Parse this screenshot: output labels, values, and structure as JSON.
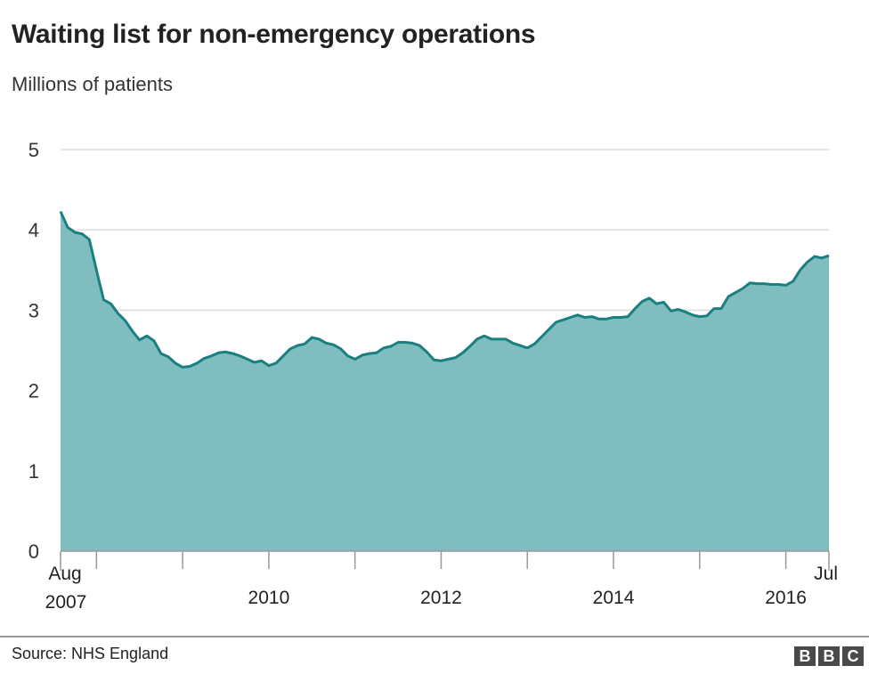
{
  "title": "Waiting list for non-emergency operations",
  "subtitle": "Millions of patients",
  "source": "Source: NHS England",
  "logo_letters": [
    "B",
    "B",
    "C"
  ],
  "colors": {
    "area_fill": "#80bdbe",
    "line": "#1a7f80",
    "grid": "#dddddd",
    "axis": "#999999"
  },
  "chart_data": {
    "type": "area",
    "title": "Waiting list for non-emergency operations",
    "ylabel": "Millions of patients",
    "xlabel": "",
    "ylim": [
      0,
      5
    ],
    "yticks": [
      0,
      1,
      2,
      3,
      4,
      5
    ],
    "xlim": [
      "2007-08",
      "2016-07"
    ],
    "x_tick_labels": [
      {
        "date": "2007-08",
        "line1": "Aug",
        "line2": "2007"
      },
      {
        "date": "2010-01",
        "line1": "2010",
        "line2": ""
      },
      {
        "date": "2012-01",
        "line1": "2012",
        "line2": ""
      },
      {
        "date": "2014-01",
        "line1": "2014",
        "line2": ""
      },
      {
        "date": "2016-01",
        "line1": "2016",
        "line2": ""
      },
      {
        "date": "2016-07",
        "line1": "Jul",
        "line2": ""
      }
    ],
    "grid": true,
    "legend": "none",
    "series": [
      {
        "x": [
          "2007-08",
          "2007-09",
          "2007-10",
          "2007-11",
          "2007-12",
          "2008-01",
          "2008-02",
          "2008-03",
          "2008-04",
          "2008-05",
          "2008-06",
          "2008-07",
          "2008-08",
          "2008-09",
          "2008-10",
          "2008-11",
          "2008-12",
          "2009-01",
          "2009-02",
          "2009-03",
          "2009-04",
          "2009-05",
          "2009-06",
          "2009-07",
          "2009-08",
          "2009-09",
          "2009-10",
          "2009-11",
          "2009-12",
          "2010-01",
          "2010-02",
          "2010-03",
          "2010-04",
          "2010-05",
          "2010-06",
          "2010-07",
          "2010-08",
          "2010-09",
          "2010-10",
          "2010-11",
          "2010-12",
          "2011-01",
          "2011-02",
          "2011-03",
          "2011-04",
          "2011-05",
          "2011-06",
          "2011-07",
          "2011-08",
          "2011-09",
          "2011-10",
          "2011-11",
          "2011-12",
          "2012-01",
          "2012-02",
          "2012-03",
          "2012-04",
          "2012-05",
          "2012-06",
          "2012-07",
          "2012-08",
          "2012-09",
          "2012-10",
          "2012-11",
          "2012-12",
          "2013-01",
          "2013-02",
          "2013-03",
          "2013-04",
          "2013-05",
          "2013-06",
          "2013-07",
          "2013-08",
          "2013-09",
          "2013-10",
          "2013-11",
          "2013-12",
          "2014-01",
          "2014-02",
          "2014-03",
          "2014-04",
          "2014-05",
          "2014-06",
          "2014-07",
          "2014-08",
          "2014-09",
          "2014-10",
          "2014-11",
          "2014-12",
          "2015-01",
          "2015-02",
          "2015-03",
          "2015-04",
          "2015-05",
          "2015-06",
          "2015-07",
          "2015-08",
          "2015-09",
          "2015-10",
          "2015-11",
          "2015-12",
          "2016-01",
          "2016-02",
          "2016-03",
          "2016-04",
          "2016-05",
          "2016-06",
          "2016-07"
        ],
        "values": [
          4.23,
          4.03,
          3.97,
          3.95,
          3.88,
          3.5,
          3.13,
          3.08,
          2.96,
          2.87,
          2.74,
          2.63,
          2.68,
          2.62,
          2.46,
          2.42,
          2.34,
          2.29,
          2.3,
          2.34,
          2.4,
          2.43,
          2.47,
          2.48,
          2.46,
          2.43,
          2.39,
          2.35,
          2.37,
          2.31,
          2.34,
          2.43,
          2.52,
          2.56,
          2.58,
          2.66,
          2.64,
          2.59,
          2.57,
          2.52,
          2.43,
          2.39,
          2.44,
          2.46,
          2.47,
          2.53,
          2.55,
          2.6,
          2.6,
          2.59,
          2.56,
          2.48,
          2.38,
          2.37,
          2.39,
          2.41,
          2.47,
          2.55,
          2.64,
          2.68,
          2.64,
          2.64,
          2.64,
          2.59,
          2.56,
          2.53,
          2.58,
          2.67,
          2.76,
          2.85,
          2.88,
          2.91,
          2.94,
          2.91,
          2.92,
          2.89,
          2.89,
          2.91,
          2.91,
          2.92,
          3.02,
          3.11,
          3.15,
          3.08,
          3.1,
          2.99,
          3.01,
          2.98,
          2.94,
          2.92,
          2.93,
          3.02,
          3.02,
          3.17,
          3.22,
          3.27,
          3.34,
          3.33,
          3.33,
          3.32,
          3.32,
          3.31,
          3.36,
          3.5,
          3.6,
          3.67,
          3.65,
          3.68
        ]
      }
    ]
  }
}
